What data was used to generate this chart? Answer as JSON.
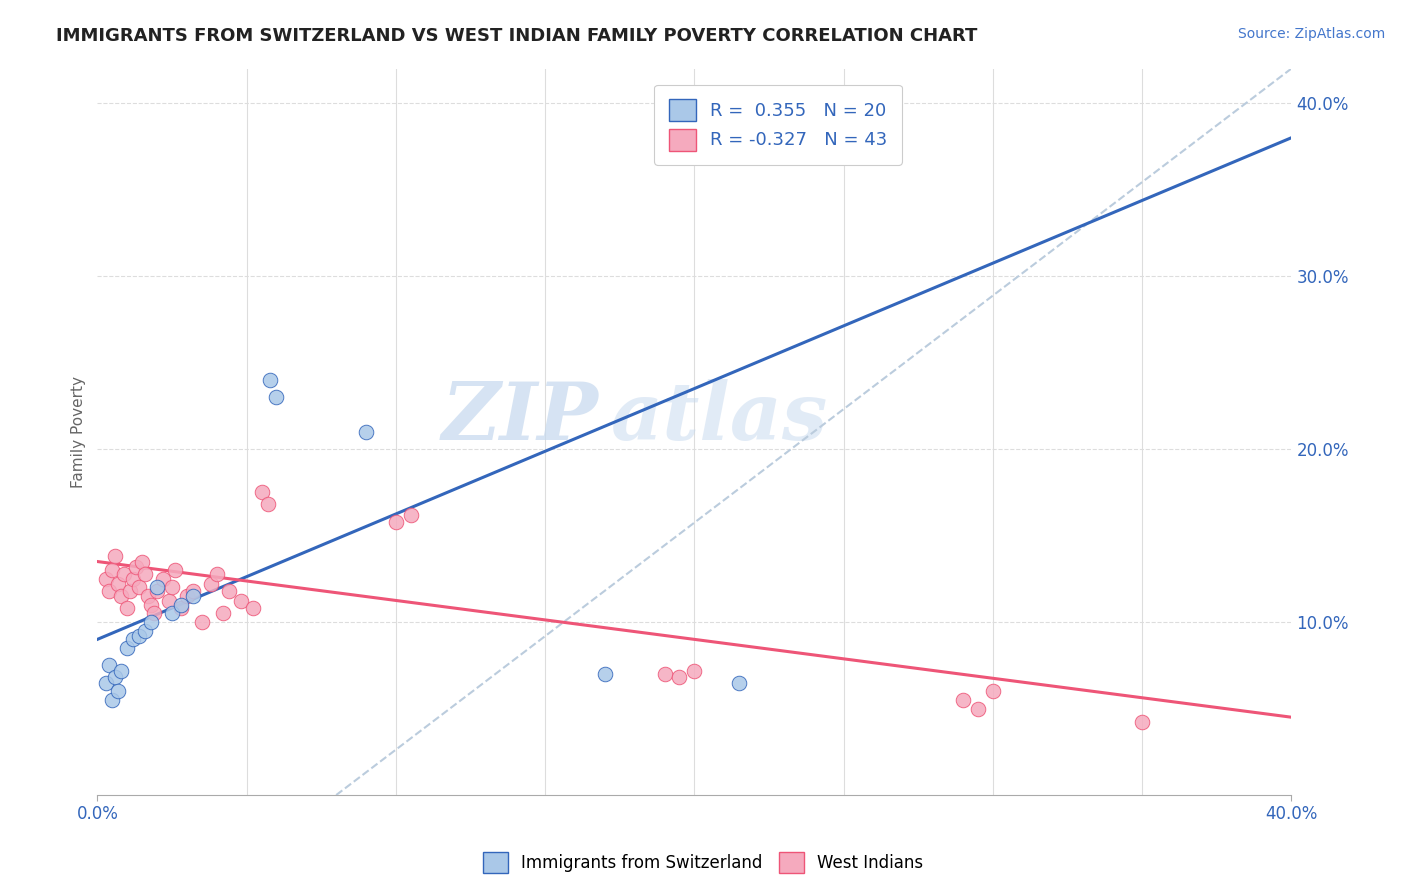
{
  "title": "IMMIGRANTS FROM SWITZERLAND VS WEST INDIAN FAMILY POVERTY CORRELATION CHART",
  "source": "Source: ZipAtlas.com",
  "ylabel": "Family Poverty",
  "legend_label1": "Immigrants from Switzerland",
  "legend_label2": "West Indians",
  "r1": 0.355,
  "n1": 20,
  "r2": -0.327,
  "n2": 43,
  "swiss_points": [
    [
      0.003,
      0.065
    ],
    [
      0.004,
      0.075
    ],
    [
      0.005,
      0.055
    ],
    [
      0.006,
      0.068
    ],
    [
      0.007,
      0.06
    ],
    [
      0.008,
      0.072
    ],
    [
      0.01,
      0.085
    ],
    [
      0.012,
      0.09
    ],
    [
      0.014,
      0.092
    ],
    [
      0.016,
      0.095
    ],
    [
      0.018,
      0.1
    ],
    [
      0.02,
      0.12
    ],
    [
      0.025,
      0.105
    ],
    [
      0.028,
      0.11
    ],
    [
      0.032,
      0.115
    ],
    [
      0.058,
      0.24
    ],
    [
      0.06,
      0.23
    ],
    [
      0.09,
      0.21
    ],
    [
      0.17,
      0.07
    ],
    [
      0.215,
      0.065
    ]
  ],
  "west_indian_points": [
    [
      0.003,
      0.125
    ],
    [
      0.004,
      0.118
    ],
    [
      0.005,
      0.13
    ],
    [
      0.006,
      0.138
    ],
    [
      0.007,
      0.122
    ],
    [
      0.008,
      0.115
    ],
    [
      0.009,
      0.128
    ],
    [
      0.01,
      0.108
    ],
    [
      0.011,
      0.118
    ],
    [
      0.012,
      0.125
    ],
    [
      0.013,
      0.132
    ],
    [
      0.014,
      0.12
    ],
    [
      0.015,
      0.135
    ],
    [
      0.016,
      0.128
    ],
    [
      0.017,
      0.115
    ],
    [
      0.018,
      0.11
    ],
    [
      0.019,
      0.105
    ],
    [
      0.02,
      0.118
    ],
    [
      0.022,
      0.125
    ],
    [
      0.024,
      0.112
    ],
    [
      0.025,
      0.12
    ],
    [
      0.026,
      0.13
    ],
    [
      0.028,
      0.108
    ],
    [
      0.03,
      0.115
    ],
    [
      0.032,
      0.118
    ],
    [
      0.035,
      0.1
    ],
    [
      0.038,
      0.122
    ],
    [
      0.04,
      0.128
    ],
    [
      0.042,
      0.105
    ],
    [
      0.044,
      0.118
    ],
    [
      0.048,
      0.112
    ],
    [
      0.052,
      0.108
    ],
    [
      0.055,
      0.175
    ],
    [
      0.057,
      0.168
    ],
    [
      0.1,
      0.158
    ],
    [
      0.105,
      0.162
    ],
    [
      0.19,
      0.07
    ],
    [
      0.195,
      0.068
    ],
    [
      0.2,
      0.072
    ],
    [
      0.29,
      0.055
    ],
    [
      0.295,
      0.05
    ],
    [
      0.3,
      0.06
    ],
    [
      0.35,
      0.042
    ]
  ],
  "swiss_color": "#aac8e8",
  "west_indian_color": "#f5aabe",
  "swiss_line_color": "#3366bb",
  "west_indian_line_color": "#ee5577",
  "trendline_dash_color": "#bbccdd",
  "background_color": "#ffffff",
  "watermark_zip": "ZIP",
  "watermark_atlas": "atlas",
  "xlim": [
    0.0,
    0.4
  ],
  "ylim": [
    0.0,
    0.42
  ],
  "yticks": [
    0.1,
    0.2,
    0.3,
    0.4
  ],
  "ytick_labels": [
    "10.0%",
    "20.0%",
    "30.0%",
    "40.0%"
  ],
  "swiss_trend": [
    0.0,
    0.09,
    0.4,
    0.38
  ],
  "wi_trend": [
    0.0,
    0.135,
    0.4,
    0.045
  ],
  "dash_trend": [
    0.08,
    0.0,
    0.4,
    0.42
  ],
  "title_fontsize": 13,
  "source_fontsize": 10
}
